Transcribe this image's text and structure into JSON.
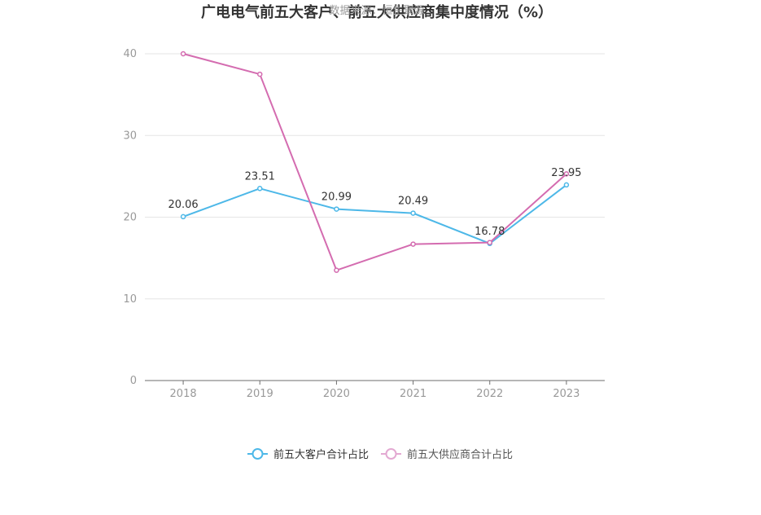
{
  "chart_data": {
    "type": "line",
    "title": "广电电气前五大客户、前五大供应商集中度情况（%）",
    "subtitle": "数据来源：恒生聚源",
    "categories": [
      "2018",
      "2019",
      "2020",
      "2021",
      "2022",
      "2023"
    ],
    "ylim": [
      0,
      40
    ],
    "yticks": [
      0,
      10,
      20,
      30,
      40
    ],
    "grid": true,
    "legend_position": "bottom",
    "series": [
      {
        "name": "前五大客户合计占比",
        "values": [
          20.06,
          23.51,
          20.99,
          20.49,
          16.78,
          23.95
        ],
        "labels": [
          "20.06",
          "23.51",
          "20.99",
          "20.49",
          "16.78",
          "23.95"
        ],
        "color": "#4db8e8"
      },
      {
        "name": "前五大供应商合计占比",
        "values": [
          40.0,
          37.5,
          13.5,
          16.7,
          16.9,
          25.3
        ],
        "color": "#d46cb0"
      }
    ]
  }
}
